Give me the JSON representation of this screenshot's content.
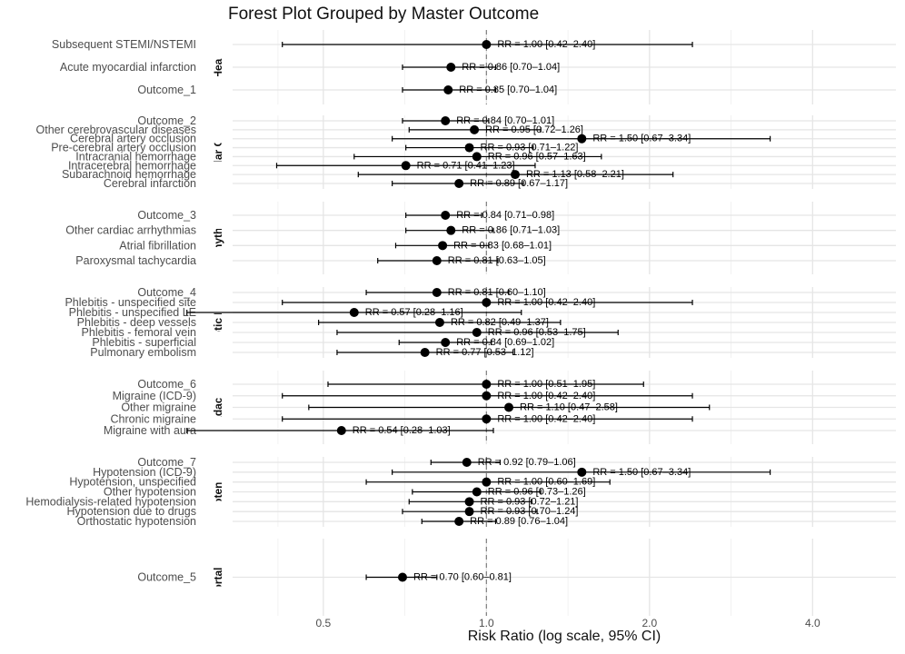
{
  "chart_data": {
    "type": "forest",
    "title": "Forest Plot Grouped by Master Outcome",
    "xlabel": "Risk Ratio (log scale, 95% CI)",
    "x_scale": "log",
    "reference_line": 1.0,
    "xlim": [
      0.34,
      5.7
    ],
    "x_ticks": [
      {
        "value": 0.5,
        "label": "0.5"
      },
      {
        "value": 1.0,
        "label": "1.0"
      },
      {
        "value": 2.0,
        "label": "2.0"
      },
      {
        "value": 4.0,
        "label": "4.0"
      }
    ],
    "grid": true,
    "panels": [
      {
        "strip": "nic Heart Di",
        "rows": [
          {
            "label": "Subsequent STEMI/NSTEMI",
            "rr": 1.0,
            "lo": 0.42,
            "hi": 2.4,
            "annotation": "RR = 1.00 [0.42–2.40]"
          },
          {
            "label": "Acute myocardial infarction",
            "rr": 0.86,
            "lo": 0.7,
            "hi": 1.04,
            "annotation": "RR = 0.86 [0.70–1.04]"
          },
          {
            "label": "Outcome_1",
            "rr": 0.85,
            "lo": 0.7,
            "hi": 1.04,
            "annotation": "RR = 0.85 [0.70–1.04]"
          }
        ]
      },
      {
        "strip": "scular Com",
        "rows": [
          {
            "label": "Outcome_2",
            "rr": 0.84,
            "lo": 0.7,
            "hi": 1.01,
            "annotation": "RR = 0.84 [0.70–1.01]"
          },
          {
            "label": "Other cerebrovascular diseases",
            "rr": 0.95,
            "lo": 0.72,
            "hi": 1.26,
            "annotation": "RR = 0.95 [0.72–1.26]"
          },
          {
            "label": "Cerebral artery occlusion",
            "rr": 1.5,
            "lo": 0.67,
            "hi": 3.34,
            "annotation": "RR = 1.50 [0.67–3.34]"
          },
          {
            "label": "Pre-cerebral artery occlusion",
            "rr": 0.93,
            "lo": 0.71,
            "hi": 1.22,
            "annotation": "RR = 0.93 [0.71–1.22]"
          },
          {
            "label": "Intracranial hemorrhage",
            "rr": 0.96,
            "lo": 0.57,
            "hi": 1.63,
            "annotation": "RR = 0.96 [0.57–1.63]"
          },
          {
            "label": "Intracerebral hemorrhage",
            "rr": 0.71,
            "lo": 0.41,
            "hi": 1.23,
            "annotation": "RR = 0.71 [0.41–1.23]"
          },
          {
            "label": "Subarachnoid hemorrhage",
            "rr": 1.13,
            "lo": 0.58,
            "hi": 2.21,
            "annotation": "RR = 1.13 [0.58–2.21]"
          },
          {
            "label": "Cerebral infarction",
            "rr": 0.89,
            "lo": 0.67,
            "hi": 1.17,
            "annotation": "RR = 0.89 [0.67–1.17]"
          }
        ]
      },
      {
        "strip": "Arrhythmia",
        "rows": [
          {
            "label": "Outcome_3",
            "rr": 0.84,
            "lo": 0.71,
            "hi": 0.98,
            "annotation": "RR = 0.84 [0.71–0.98]"
          },
          {
            "label": "Other cardiac arrhythmias",
            "rr": 0.86,
            "lo": 0.71,
            "hi": 1.03,
            "annotation": "RR = 0.86 [0.71–1.03]"
          },
          {
            "label": "Atrial fibrillation",
            "rr": 0.83,
            "lo": 0.68,
            "hi": 1.01,
            "annotation": "RR = 0.83 [0.68–1.01]"
          },
          {
            "label": "Paroxysmal tachycardia",
            "rr": 0.81,
            "lo": 0.63,
            "hi": 1.05,
            "annotation": "RR = 0.81 [0.63–1.05]"
          }
        ]
      },
      {
        "strip": "mbotic Diso",
        "rows": [
          {
            "label": "Outcome_4",
            "rr": 0.81,
            "lo": 0.6,
            "hi": 1.1,
            "annotation": "RR = 0.81 [0.60–1.10]"
          },
          {
            "label": "Phlebitis - unspecified site",
            "rr": 1.0,
            "lo": 0.42,
            "hi": 2.4,
            "annotation": "RR = 1.00 [0.42–2.40]"
          },
          {
            "label": "Phlebitis - unspecified LE",
            "rr": 0.57,
            "lo": 0.28,
            "hi": 1.16,
            "annotation": "RR = 0.57 [0.28–1.16]"
          },
          {
            "label": "Phlebitis - deep vessels",
            "rr": 0.82,
            "lo": 0.49,
            "hi": 1.37,
            "annotation": "RR = 0.82 [0.49–1.37]"
          },
          {
            "label": "Phlebitis - femoral vein",
            "rr": 0.96,
            "lo": 0.53,
            "hi": 1.75,
            "annotation": "RR = 0.96 [0.53–1.75]"
          },
          {
            "label": "Phlebitis - superficial",
            "rr": 0.84,
            "lo": 0.69,
            "hi": 1.02,
            "annotation": "RR = 0.84 [0.69–1.02]"
          },
          {
            "label": "Pulmonary embolism",
            "rr": 0.77,
            "lo": 0.53,
            "hi": 1.12,
            "annotation": "RR = 0.77 [0.53–1.12]"
          }
        ]
      },
      {
        "strip": "Headaches",
        "rows": [
          {
            "label": "Outcome_6",
            "rr": 1.0,
            "lo": 0.51,
            "hi": 1.95,
            "annotation": "RR = 1.00 [0.51–1.95]"
          },
          {
            "label": "Migraine (ICD-9)",
            "rr": 1.0,
            "lo": 0.42,
            "hi": 2.4,
            "annotation": "RR = 1.00 [0.42–2.40]"
          },
          {
            "label": "Other migraine",
            "rr": 1.1,
            "lo": 0.47,
            "hi": 2.58,
            "annotation": "RR = 1.10 [0.47–2.58]"
          },
          {
            "label": "Chronic migraine",
            "rr": 1.0,
            "lo": 0.42,
            "hi": 2.4,
            "annotation": "RR = 1.00 [0.42–2.40]"
          },
          {
            "label": "Migraine with aura",
            "rr": 0.54,
            "lo": 0.28,
            "hi": 1.03,
            "annotation": "RR = 0.54 [0.28–1.03]"
          }
        ]
      },
      {
        "strip": "ypotensio",
        "rows": [
          {
            "label": "Outcome_7",
            "rr": 0.92,
            "lo": 0.79,
            "hi": 1.06,
            "annotation": "RR = 0.92 [0.79–1.06]"
          },
          {
            "label": "Hypotension (ICD-9)",
            "rr": 1.5,
            "lo": 0.67,
            "hi": 3.34,
            "annotation": "RR = 1.50 [0.67–3.34]"
          },
          {
            "label": "Hypotension, unspecified",
            "rr": 1.0,
            "lo": 0.6,
            "hi": 1.69,
            "annotation": "RR = 1.00 [0.60–1.69]"
          },
          {
            "label": "Other hypotension",
            "rr": 0.96,
            "lo": 0.73,
            "hi": 1.26,
            "annotation": "RR = 0.96 [0.73–1.26]"
          },
          {
            "label": "Hemodialysis-related hypotension",
            "rr": 0.93,
            "lo": 0.72,
            "hi": 1.21,
            "annotation": "RR = 0.93 [0.72–1.21]"
          },
          {
            "label": "Hypotension due to drugs",
            "rr": 0.93,
            "lo": 0.7,
            "hi": 1.24,
            "annotation": "RR = 0.93 [0.70–1.24]"
          },
          {
            "label": "Orthostatic hypotension",
            "rr": 0.89,
            "lo": 0.76,
            "hi": 1.04,
            "annotation": "RR = 0.89 [0.76–1.04]"
          }
        ]
      },
      {
        "strip": "Mortality",
        "rows": [
          {
            "label": "Outcome_5",
            "rr": 0.7,
            "lo": 0.6,
            "hi": 0.81,
            "annotation": "RR = 0.70 [0.60–0.81]"
          }
        ]
      }
    ]
  }
}
